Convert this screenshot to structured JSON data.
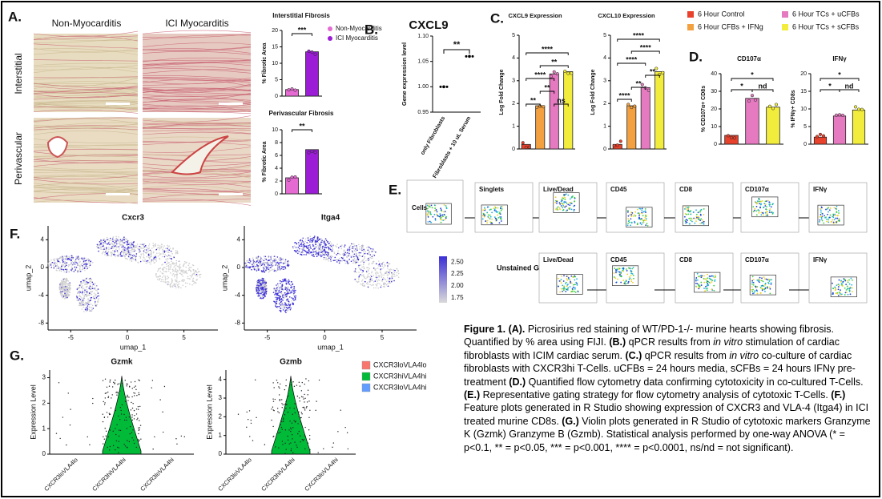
{
  "panel_a": {
    "label": "A.",
    "col_labels": [
      "Non-Myocarditis",
      "ICI Myocarditis"
    ],
    "row_labels": [
      "Interstitial",
      "Perivascular"
    ],
    "legend": [
      "Non-Myocarditis",
      "ICI Myocarditis"
    ],
    "legend_colors": [
      "#e56bd2",
      "#9b1ed6"
    ],
    "charts": [
      {
        "type": "bar",
        "title": "Interstitial Fibrosis",
        "ylabel": "% Fibrotic Area",
        "ylim": [
          0,
          20
        ],
        "yticks": [
          0,
          5,
          10,
          15,
          20
        ],
        "values": [
          2,
          13.5
        ],
        "colors": [
          "#e56bd2",
          "#9b1ed6"
        ],
        "sig": [
          "***"
        ]
      },
      {
        "type": "bar",
        "title": "Perivascular Fibrosis",
        "ylabel": "% Fibrotic Area",
        "ylim": [
          0,
          10
        ],
        "yticks": [
          0,
          2,
          4,
          6,
          8,
          10
        ],
        "values": [
          2.5,
          6.9
        ],
        "colors": [
          "#e56bd2",
          "#9b1ed6"
        ],
        "sig": [
          "**"
        ]
      }
    ]
  },
  "panel_b": {
    "label": "B.",
    "chart": {
      "type": "scatter",
      "title": "CXCL9",
      "ylabel": "Gene expression level",
      "ylim": [
        0.95,
        1.1
      ],
      "yticks": [
        0.95,
        {
          "value": 1,
          "label": "1.00"
        },
        1.05,
        {
          "value": 1.1,
          "label": "1.10"
        }
      ],
      "categories": [
        "only Fibroblasts",
        "Fibroblasts + 10 uL Serum"
      ],
      "values": [
        1,
        1.06
      ],
      "sig": [
        "**"
      ]
    }
  },
  "panel_c": {
    "label": "C.",
    "legend": {
      "names": [
        "6 Hour Control",
        "6 Hour CFBs + IFNg",
        "6 Hour TCs + uCFBs",
        "6 Hour TCs + sCFBs"
      ],
      "colors": [
        "#e8412c",
        "#f2a040",
        "#e57ac0",
        "#f2ec3c"
      ]
    },
    "charts": [
      {
        "type": "bar",
        "title": "CXCL9 Expression",
        "ylabel": "Log Fold Change",
        "ylim": [
          0,
          5
        ],
        "yticks": [
          0,
          1,
          2,
          3,
          4,
          5
        ],
        "values": [
          0.2,
          1.9,
          3.3,
          3.4
        ],
        "colors": [
          "#e8412c",
          "#f2a040",
          "#e57ac0",
          "#f2ec3c"
        ],
        "sig": [
          "**",
          "**",
          "ns",
          "****",
          "**",
          "****"
        ]
      },
      {
        "type": "bar",
        "title": "CXCL10 Expression",
        "ylabel": "Log Fold Change",
        "ylim": [
          0,
          5
        ],
        "yticks": [
          0,
          1,
          2,
          3,
          4,
          5
        ],
        "values": [
          0.2,
          1.9,
          2.7,
          3.4
        ],
        "colors": [
          "#e8412c",
          "#f2a040",
          "#e57ac0",
          "#f2ec3c"
        ],
        "sig": [
          "****",
          "**",
          "**",
          "****",
          "****",
          "****"
        ]
      }
    ]
  },
  "panel_d": {
    "label": "D.",
    "charts": [
      {
        "type": "bar",
        "title": "CD107α",
        "ylabel": "% CD107α+ CD8s",
        "ylim": [
          0,
          40
        ],
        "yticks": [
          0,
          10,
          20,
          30,
          40
        ],
        "values": [
          5,
          26,
          21
        ],
        "colors": [
          "#e8412c",
          "#e57ac0",
          "#f2ec3c"
        ],
        "sig": [
          "*",
          "nd",
          "*"
        ]
      },
      {
        "type": "bar",
        "title": "IFNγ",
        "ylabel": "% IFNγ+ CD8s",
        "ylim": [
          0,
          20
        ],
        "yticks": [
          0,
          5,
          10,
          15,
          20
        ],
        "values": [
          2,
          8,
          9.7
        ],
        "colors": [
          "#e8412c",
          "#e57ac0",
          "#f2ec3c"
        ],
        "sig": [
          "*",
          "nd",
          "*"
        ]
      }
    ]
  },
  "panel_e": {
    "label": "E.",
    "top_gates": [
      "Cells",
      "Singlets",
      "Live/Dead",
      "CD45",
      "CD8",
      "CD107α",
      "IFNγ"
    ],
    "unstained_label": "Unstained Gating:",
    "bottom_gates": [
      "Live/Dead",
      "CD45",
      "CD8",
      "CD107α",
      "IFNγ"
    ]
  },
  "panel_f": {
    "label": "F.",
    "plots": [
      {
        "title": "Cxcr3",
        "xlabel": "umap_1",
        "ylabel": "umap_2",
        "xlim": [
          -7,
          8
        ],
        "ylim": [
          -9,
          6
        ],
        "xticks": [
          -5,
          0,
          5
        ],
        "yticks": [
          -8,
          -4,
          0,
          4
        ]
      },
      {
        "title": "Itga4",
        "xlabel": "umap_1",
        "ylabel": "umap_2",
        "xlim": [
          -7,
          8
        ],
        "ylim": [
          -9,
          6
        ],
        "xticks": [
          -5,
          0,
          5
        ],
        "yticks": [
          -8,
          -4,
          0,
          4
        ]
      }
    ],
    "colorbar": {
      "lim": [
        1.65,
        2.62
      ],
      "ticks": [
        1.75,
        {
          "value": 2,
          "label": "2.00"
        },
        2.25,
        {
          "value": 2.5,
          "label": "2.50"
        }
      ],
      "colors": [
        "#d9d9d9",
        "#3b2fd6"
      ]
    }
  },
  "panel_g": {
    "label": "G.",
    "categories": [
      "CXCR3loVLA4lo",
      "CXCR3hiVLA4hi",
      "CXCR3loVLA4hi"
    ],
    "colors": [
      "#f8766d",
      "#00ba38",
      "#619cff"
    ],
    "plots": [
      {
        "title": "Gzmk",
        "ylabel": "Expression Level",
        "ylim": [
          0,
          3.3
        ],
        "yticks": [
          0,
          1,
          2,
          3
        ]
      },
      {
        "title": "Gzmb",
        "ylabel": "Expression Level",
        "ylim": [
          0,
          4.5
        ],
        "yticks": [
          0,
          1,
          2,
          3,
          4
        ]
      }
    ]
  },
  "caption": [
    {
      "text": "Figure 1. (A).",
      "style": "bold"
    },
    {
      "text": " Picrosirius red staining of WT/PD-1-/- murine hearts showing fibrosis. Quantified by % area using FIJI. "
    },
    {
      "text": "(B.)",
      "style": "bold"
    },
    {
      "text": " qPCR results from "
    },
    {
      "text": "in vitro",
      "style": "italic"
    },
    {
      "text": " stimulation of cardiac fibroblasts with ICIM cardiac serum. "
    },
    {
      "text": "(C.)",
      "style": "bold"
    },
    {
      "text": " qPCR results from "
    },
    {
      "text": "in vitro",
      "style": "italic"
    },
    {
      "text": " co-culture of cardiac fibroblasts with CXCR3hi T-Cells. uCFBs = 24 hours media, sCFBs = 24 hours IFNγ pre-treatment "
    },
    {
      "text": "(D.)",
      "style": "bold"
    },
    {
      "text": " Quantified flow cytometry data confirming cytotoxicity in co-cultured T-Cells. "
    },
    {
      "text": "(E.)",
      "style": "bold"
    },
    {
      "text": " Representative gating strategy for flow cytometry analysis of cytotoxic T-Cells. "
    },
    {
      "text": "(F.)",
      "style": "bold"
    },
    {
      "text": " Feature plots generated in R Studio showing expression of CXCR3 and VLA-4 (Itga4) in ICI treated murine CD8s. "
    },
    {
      "text": "(G.)",
      "style": "bold"
    },
    {
      "text": " Violin plots generated in R Studio of cytotoxic markers Granzyme K (Gzmk) Granzyme B (Gzmb). Statistical analysis performed by one-way ANOVA (* = p<0.1, ** = p<0.05, *** = p<0.001, **** = p<0.0001, ns/nd = not significant)."
    }
  ]
}
